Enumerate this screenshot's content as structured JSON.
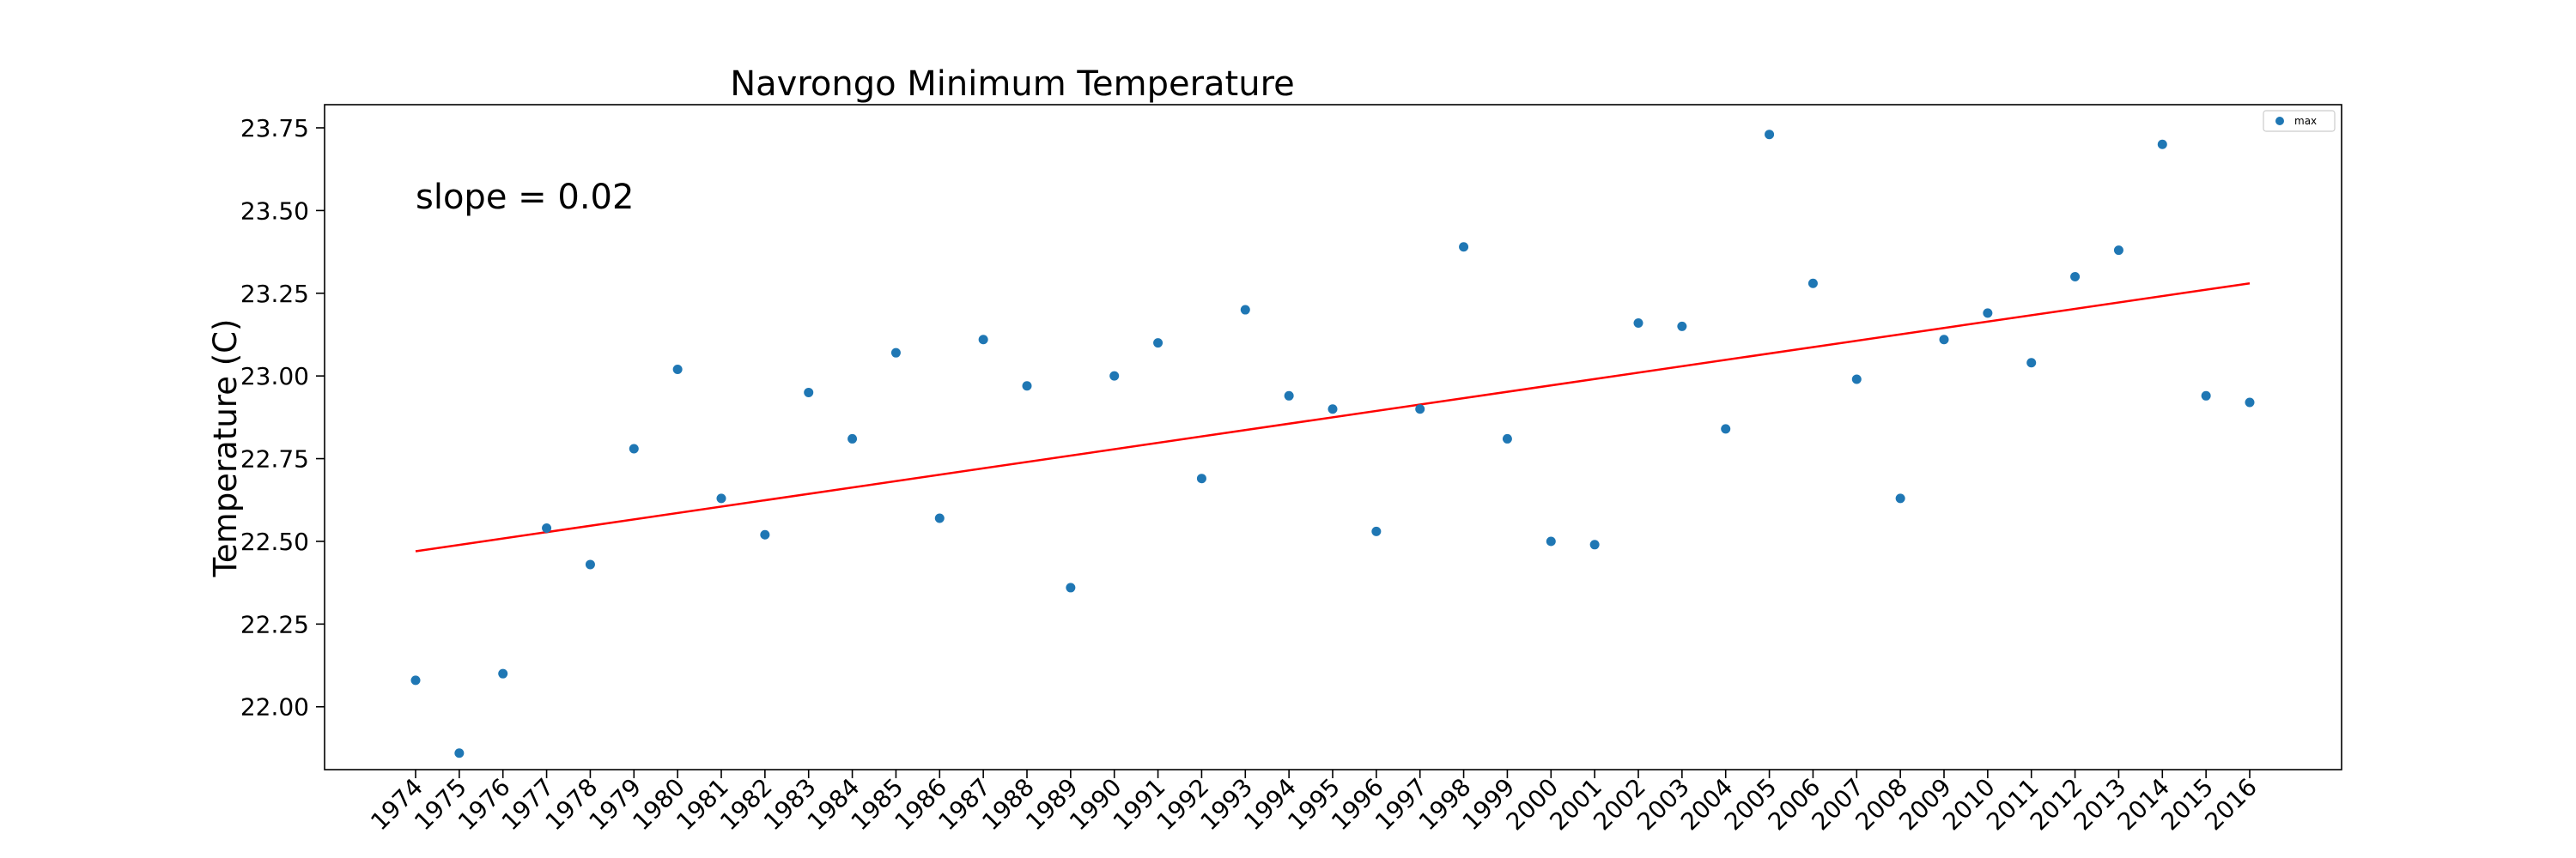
{
  "chart_data": {
    "type": "scatter",
    "title": "Navrongo Minimum Temperature",
    "xlabel": "",
    "ylabel": "Temperature (C)",
    "annotation": "slope = 0.02",
    "x": [
      "1974",
      "1975",
      "1976",
      "1977",
      "1978",
      "1979",
      "1980",
      "1981",
      "1982",
      "1983",
      "1984",
      "1985",
      "1986",
      "1987",
      "1988",
      "1989",
      "1990",
      "1991",
      "1992",
      "1993",
      "1994",
      "1995",
      "1996",
      "1997",
      "1998",
      "1999",
      "2000",
      "2001",
      "2002",
      "2003",
      "2004",
      "2005",
      "2006",
      "2007",
      "2008",
      "2009",
      "2010",
      "2011",
      "2012",
      "2013",
      "2014",
      "2015",
      "2016"
    ],
    "series": [
      {
        "name": "max",
        "color": "#1f77b4",
        "values": [
          22.08,
          21.86,
          22.1,
          22.54,
          22.43,
          22.78,
          23.02,
          22.63,
          22.52,
          22.95,
          22.81,
          23.07,
          22.57,
          23.11,
          22.97,
          22.36,
          23.0,
          23.1,
          22.69,
          23.2,
          22.94,
          22.9,
          22.53,
          22.9,
          23.39,
          22.81,
          22.5,
          22.49,
          23.16,
          23.15,
          22.84,
          23.73,
          23.28,
          22.99,
          22.63,
          23.11,
          23.19,
          23.04,
          23.3,
          23.38,
          23.7,
          22.94,
          22.92
        ]
      }
    ],
    "trendline": {
      "color": "#ff0000",
      "start": 22.47,
      "end": 23.28
    },
    "yticks": [
      "22.00",
      "22.25",
      "22.50",
      "22.75",
      "23.00",
      "23.25",
      "23.50",
      "23.75"
    ],
    "ylim": [
      21.81,
      23.82
    ],
    "grid": false,
    "legend_position": "top-right"
  }
}
